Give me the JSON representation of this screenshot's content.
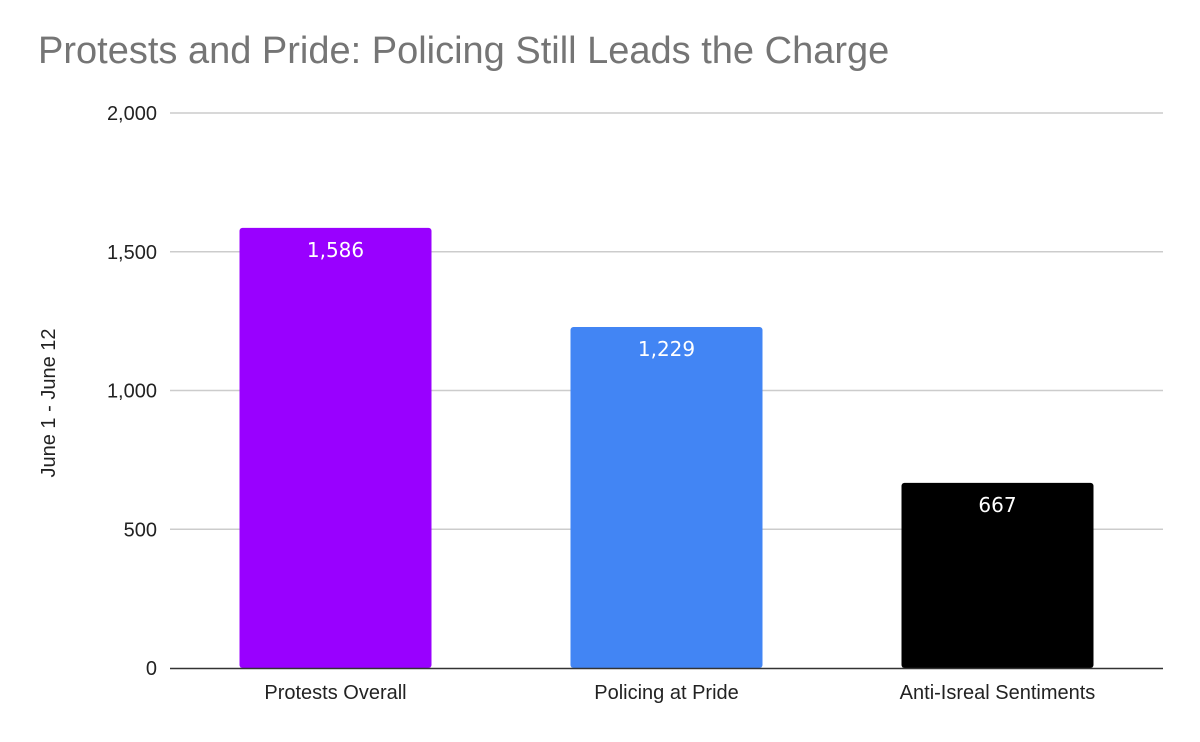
{
  "chart_data": {
    "type": "bar",
    "title": "Protests and Pride: Policing Still Leads the Charge",
    "xlabel": "",
    "ylabel": "June 1 - June 12",
    "categories": [
      "Protests Overall",
      "Policing at Pride",
      "Anti-Isreal Sentiments"
    ],
    "values": [
      1586,
      1229,
      667
    ],
    "data_labels": [
      "1,586",
      "1,229",
      "667"
    ],
    "colors": [
      "#9900ff",
      "#4285f4",
      "#000000"
    ],
    "ylim": [
      0,
      2000
    ],
    "yticks": [
      0,
      500,
      1000,
      1500,
      2000
    ],
    "ytick_labels": [
      "0",
      "500",
      "1,000",
      "1,500",
      "2,000"
    ],
    "grid": true,
    "legend": "none"
  }
}
